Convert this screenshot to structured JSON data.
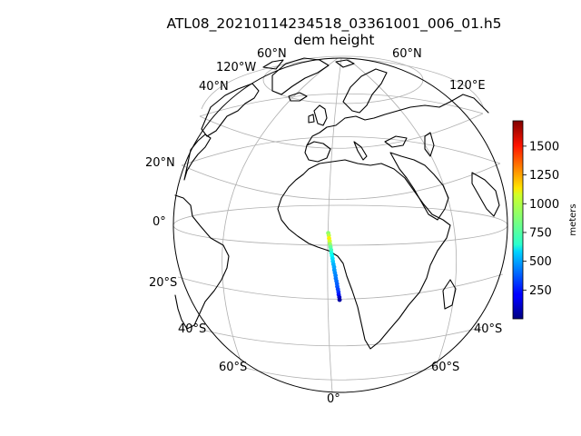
{
  "title": "ATL08_20210114234518_03361001_006_01.h5",
  "subtitle": "dem height",
  "projection": "orthographic",
  "gridline_labels": {
    "top_left": "60°N",
    "top_right": "60°N",
    "upper_left_lon": "120°W",
    "upper_right_lon": "120°E",
    "left_40n": "40°N",
    "left_20n": "20°N",
    "left_0": "0°",
    "left_20s": "20°S",
    "left_40s": "40°S",
    "right_40s": "40°S",
    "bottom_left_60s": "60°S",
    "bottom_right_60s": "60°S",
    "bottom_0": "0°"
  },
  "colorbar": {
    "label": "meters",
    "colormap": "jet",
    "vmin": 0,
    "vmax": 1720,
    "ticks": [
      "250",
      "500",
      "750",
      "1000",
      "1250",
      "1500"
    ],
    "tick_values": [
      250,
      500,
      750,
      1000,
      1250,
      1500
    ]
  },
  "track": {
    "description_points_lon_lat_height": [
      [
        0.8,
        7.3,
        880
      ],
      [
        1.0,
        6.5,
        960
      ],
      [
        1.1,
        5.5,
        1100
      ],
      [
        1.3,
        4.5,
        1000
      ],
      [
        1.4,
        3.5,
        900
      ],
      [
        1.6,
        2.5,
        820
      ],
      [
        1.8,
        1.5,
        760
      ],
      [
        1.9,
        0.5,
        700
      ],
      [
        2.1,
        -0.5,
        650
      ],
      [
        2.3,
        -1.5,
        600
      ],
      [
        2.4,
        -2.5,
        560
      ],
      [
        2.6,
        -3.5,
        520
      ],
      [
        2.8,
        -4.5,
        500
      ],
      [
        2.9,
        -5.5,
        480
      ],
      [
        3.1,
        -6.5,
        460
      ],
      [
        3.3,
        -7.5,
        440
      ],
      [
        3.4,
        -8.5,
        420
      ],
      [
        3.6,
        -9.5,
        400
      ],
      [
        3.8,
        -10.5,
        380
      ],
      [
        3.9,
        -11.5,
        360
      ],
      [
        4.1,
        -12.5,
        330
      ],
      [
        4.3,
        -13.5,
        300
      ],
      [
        4.4,
        -14.5,
        250
      ],
      [
        4.6,
        -15.5,
        120
      ],
      [
        4.7,
        -16.5,
        60
      ]
    ]
  }
}
